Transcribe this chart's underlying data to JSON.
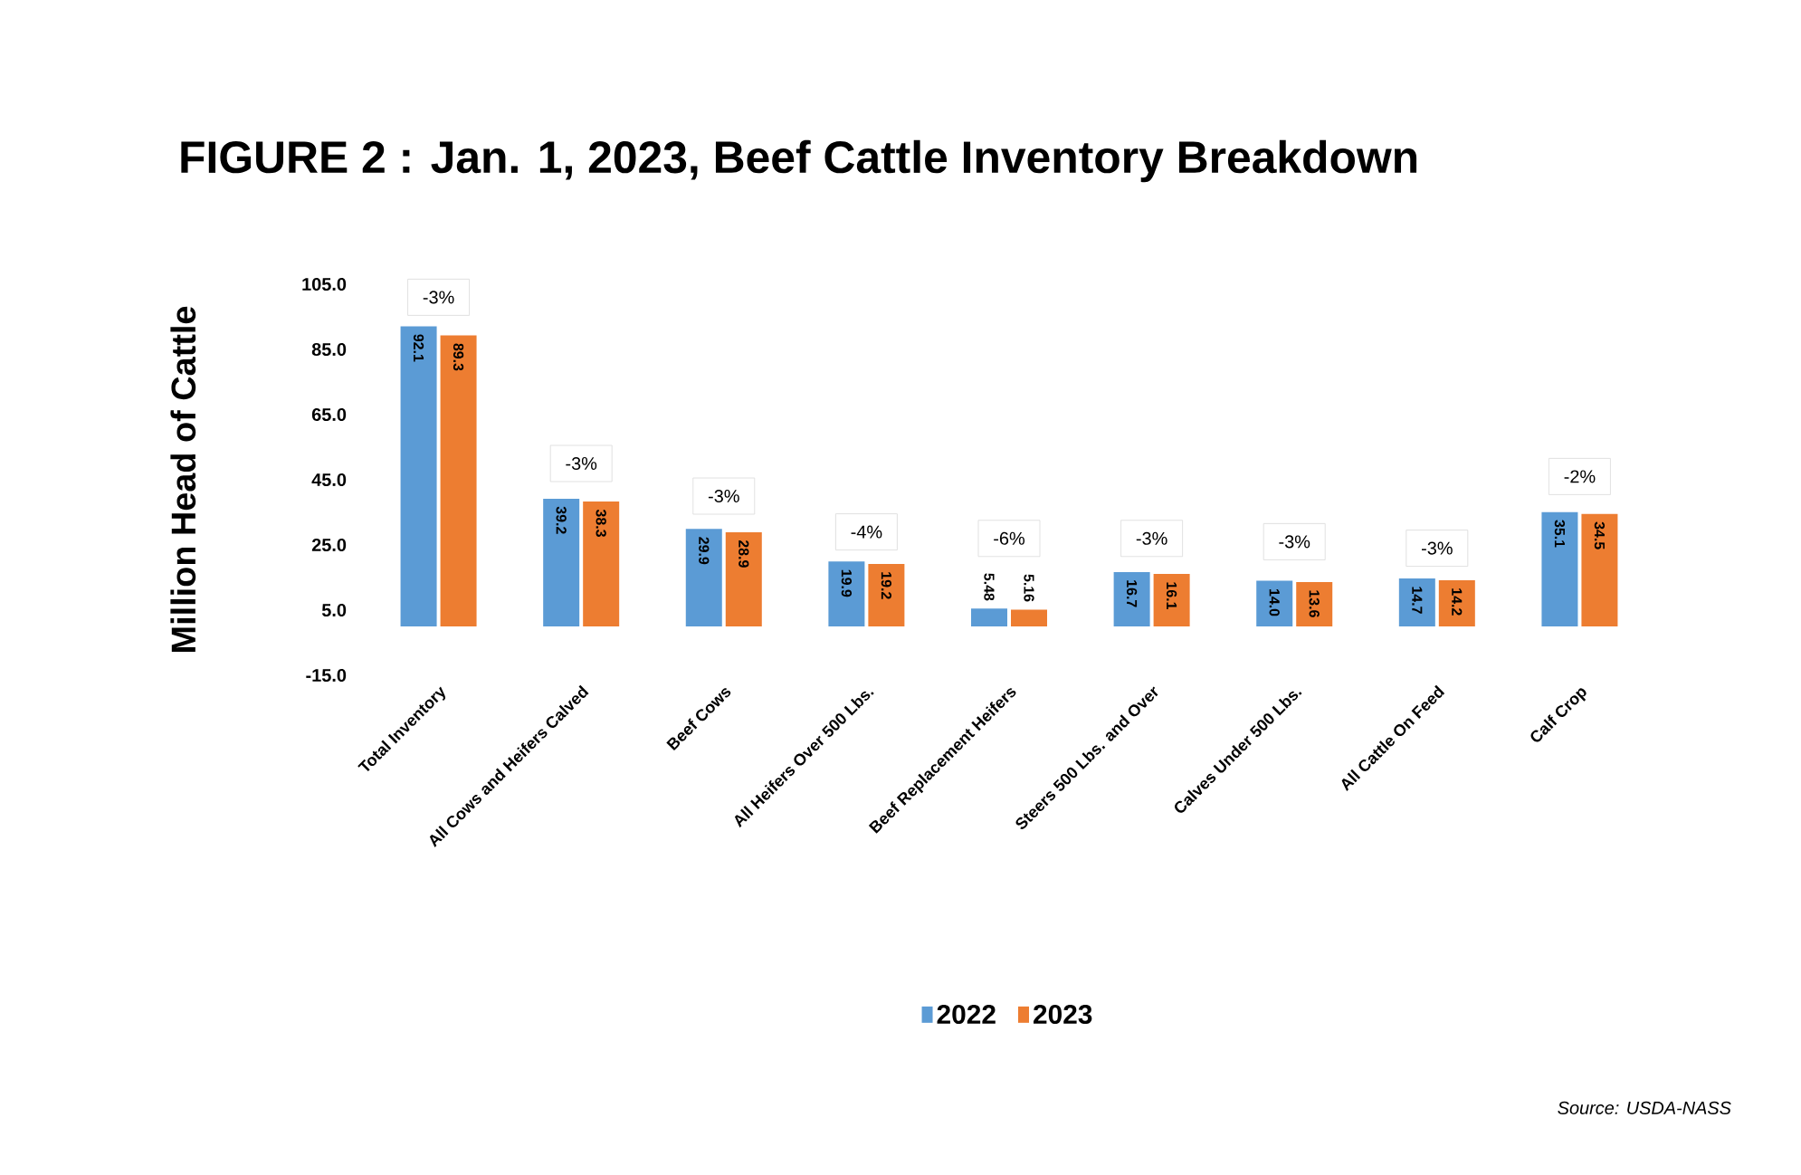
{
  "chart_data": {
    "type": "bar",
    "title": "FIGURE  2 : Jan. 1, 2023, Beef Cattle Inventory Breakdown",
    "ylabel": "Million Head of Cattle",
    "categories": [
      "Total Inventory",
      "All Cows and Heifers Calved",
      "Beef Cows",
      "All Heifers Over 500 Lbs.",
      "Beef Replacement Heifers",
      "Steers 500 Lbs. and Over",
      "Calves Under 500 Lbs.",
      "All Cattle On Feed",
      "Calf Crop"
    ],
    "series": [
      {
        "name": "2022",
        "color": "#5b9bd5",
        "values": [
          92.1,
          39.2,
          29.9,
          19.9,
          5.48,
          16.7,
          14.0,
          14.7,
          35.1
        ],
        "value_labels": [
          "92.1",
          "39.2",
          "29.9",
          "19.9",
          "5.48",
          "16.7",
          "14.0",
          "14.7",
          "35.1"
        ]
      },
      {
        "name": "2023",
        "color": "#ed7d31",
        "values": [
          89.3,
          38.3,
          28.9,
          19.2,
          5.16,
          16.1,
          13.6,
          14.2,
          34.5
        ],
        "value_labels": [
          "89.3",
          "38.3",
          "28.9",
          "19.2",
          "5.16",
          "16.1",
          "13.6",
          "14.2",
          "34.5"
        ]
      }
    ],
    "ylim": [
      -15,
      105
    ],
    "yticks": [
      {
        "value": -15,
        "label": "-15.0"
      },
      {
        "value": 5,
        "label": "5.0"
      },
      {
        "value": 25,
        "label": "25.0"
      },
      {
        "value": 45,
        "label": "45.0"
      },
      {
        "value": 65,
        "label": "65.0"
      },
      {
        "value": 85,
        "label": "85.0"
      },
      {
        "value": 105,
        "label": "105.0"
      }
    ],
    "grid": false,
    "legend": "bottom",
    "annotations": [
      {
        "text": "-3%",
        "x": "Total Inventory",
        "y": 101
      },
      {
        "text": "-3%",
        "x": "All Cows and Heifers Calved",
        "y": 50
      },
      {
        "text": "-3%",
        "x": "Beef Cows",
        "y": 40
      },
      {
        "text": "-4%",
        "x": "All Heifers Over 500 Lbs.",
        "y": 29
      },
      {
        "text": "-6%",
        "x": "Beef Replacement Heifers",
        "y": 27
      },
      {
        "text": "-3%",
        "x": "Steers 500 Lbs. and Over",
        "y": 27
      },
      {
        "text": "-3%",
        "x": "Calves Under 500 Lbs.",
        "y": 26
      },
      {
        "text": "-3%",
        "x": "All Cattle On Feed",
        "y": 24
      },
      {
        "text": "-2%",
        "x": "Calf Crop",
        "y": 46
      },
      "Source: USDA-NASS"
    ]
  }
}
